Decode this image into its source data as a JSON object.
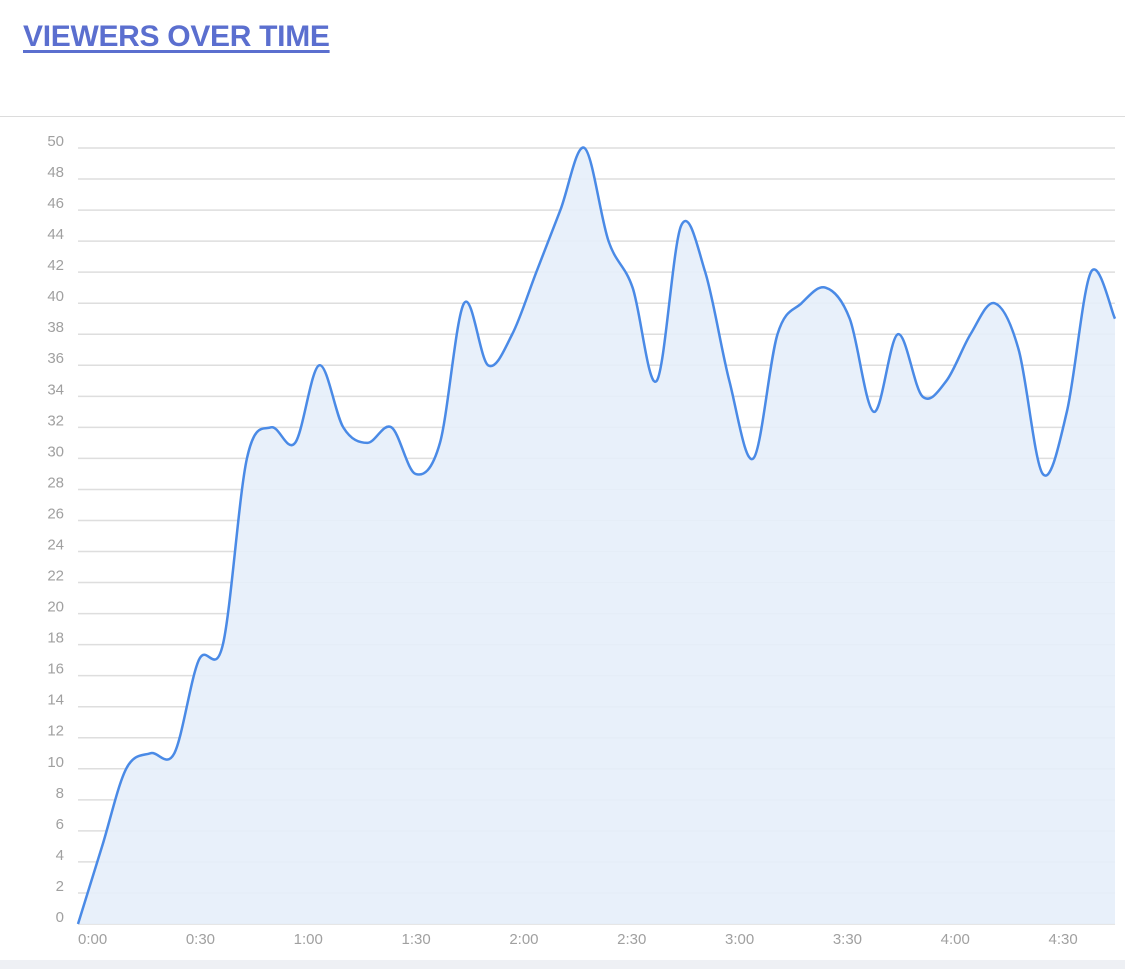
{
  "chart_data": {
    "type": "area",
    "title": "VIEWERS OVER TIME",
    "x": [
      0,
      6.7,
      13.4,
      20.1,
      26.8,
      33.6,
      40.3,
      47,
      53.7,
      60.4,
      67.1,
      73.8,
      80.5,
      87.2,
      93.9,
      100.7,
      107.4,
      114.1,
      120.8,
      127.5,
      134.2,
      140.9,
      147.6,
      154.3,
      161,
      167.8,
      174.5,
      181.2,
      187.9,
      194.6,
      201.3,
      208,
      214.7,
      221.4,
      228.1,
      234.9,
      241.6,
      248.3,
      255,
      261.7,
      268.4,
      275.1,
      281.8,
      288.5
    ],
    "values": [
      0,
      5,
      10,
      11,
      11,
      17,
      18,
      30,
      32,
      31,
      36,
      32,
      31,
      32,
      29,
      31,
      40,
      36,
      38,
      42,
      46,
      50,
      44,
      41,
      35,
      45,
      42,
      35,
      30,
      38,
      40,
      41,
      39,
      33,
      38,
      34,
      35,
      38,
      40,
      37,
      29,
      33,
      42,
      39
    ],
    "color": "#4a8ae6",
    "fill": "#e6eefa",
    "xlim": [
      0,
      288.5
    ],
    "xticks": [
      {
        "value": 0,
        "label": "0:00"
      },
      {
        "value": 30,
        "label": "0:30"
      },
      {
        "value": 60,
        "label": "1:00"
      },
      {
        "value": 90,
        "label": "1:30"
      },
      {
        "value": 120,
        "label": "2:00"
      },
      {
        "value": 150,
        "label": "2:30"
      },
      {
        "value": 180,
        "label": "3:00"
      },
      {
        "value": 210,
        "label": "3:30"
      },
      {
        "value": 240,
        "label": "4:00"
      },
      {
        "value": 270,
        "label": "4:30"
      }
    ],
    "ylim": [
      0,
      50
    ],
    "yticks": [
      0,
      2,
      4,
      6,
      8,
      10,
      12,
      14,
      16,
      18,
      20,
      22,
      24,
      26,
      28,
      30,
      32,
      34,
      36,
      38,
      40,
      42,
      44,
      46,
      48,
      50
    ],
    "grid": true
  }
}
